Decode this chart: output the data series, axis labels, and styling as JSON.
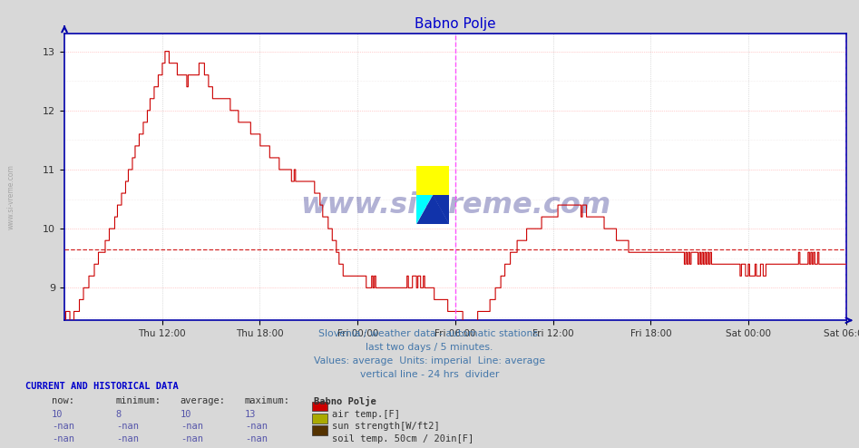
{
  "title": "Babno Polje",
  "title_color": "#0000cc",
  "title_fontsize": 11,
  "bg_color": "#d8d8d8",
  "plot_bg_color": "#ffffff",
  "line_color": "#cc0000",
  "avg_line_color": "#cc0000",
  "avg_line_value": 9.65,
  "vline_color": "#ff44ff",
  "axis_color": "#0000aa",
  "watermark_text": "www.si-vreme.com",
  "footer_color": "#4477aa",
  "footer_lines": [
    "Slovenia / weather data - automatic stations.",
    "last two days / 5 minutes.",
    "Values: average  Units: imperial  Line: average",
    "vertical line - 24 hrs  divider"
  ],
  "legend_entries": [
    {
      "label": "air temp.[F]",
      "color": "#cc0000"
    },
    {
      "label": "sun strength[W/ft2]",
      "color": "#aaaa00"
    },
    {
      "label": "soil temp. 50cm / 20in[F]",
      "color": "#553300"
    }
  ],
  "table_headers": [
    "now:",
    "minimum:",
    "average:",
    "maximum:"
  ],
  "table_rows": [
    [
      "10",
      "8",
      "10",
      "13"
    ],
    [
      "-nan",
      "-nan",
      "-nan",
      "-nan"
    ],
    [
      "-nan",
      "-nan",
      "-nan",
      "-nan"
    ]
  ],
  "ylim": [
    8.45,
    13.3
  ],
  "yticks": [
    9,
    10,
    11,
    12,
    13
  ],
  "xtick_labels": [
    "Thu 12:00",
    "Thu 18:00",
    "Fri 00:00",
    "Fri 06:00",
    "Fri 12:00",
    "Fri 18:00",
    "Sat 00:00",
    "Sat 06:00"
  ],
  "vline_x": [
    0.5,
    1.0
  ]
}
